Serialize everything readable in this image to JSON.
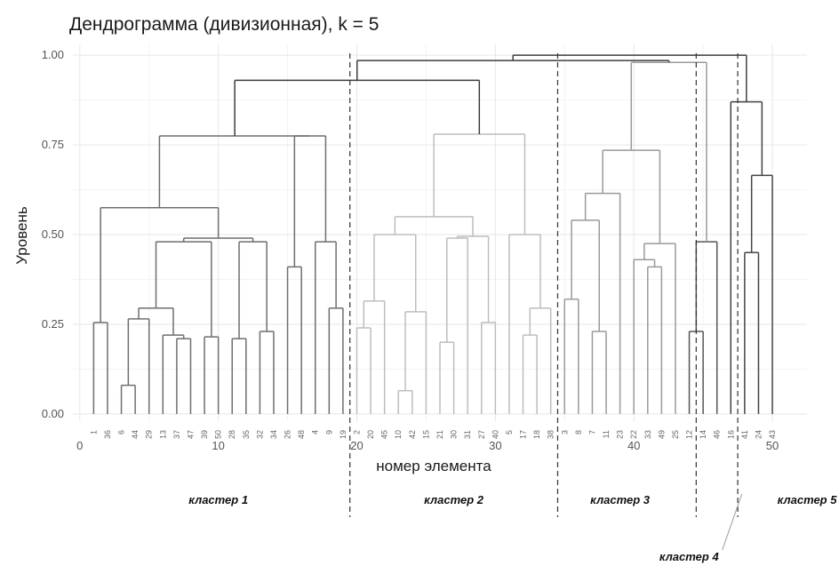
{
  "chart_data": {
    "type": "dendrogram",
    "title": "Дендрограмма (дивизионная), k = 5",
    "xlabel": "номер элемента",
    "ylabel": "Уровень",
    "xlim": [
      -0.5,
      52.5
    ],
    "ylim": [
      -0.02,
      1.03
    ],
    "x_ticks": [
      0,
      10,
      20,
      30,
      40,
      50
    ],
    "x_tick_labels": [
      "0",
      "10",
      "20",
      "30",
      "40",
      "50"
    ],
    "y_ticks": [
      0.0,
      0.25,
      0.5,
      0.75,
      1.0
    ],
    "y_tick_labels": [
      "0.00",
      "0.25",
      "0.50",
      "0.75",
      "1.00"
    ],
    "grid": true,
    "leaf_order": [
      "1",
      "36",
      "6",
      "44",
      "29",
      "13",
      "37",
      "47",
      "39",
      "50",
      "28",
      "35",
      "32",
      "34",
      "26",
      "48",
      "4",
      "9",
      "19",
      "2",
      "20",
      "45",
      "10",
      "42",
      "15",
      "21",
      "30",
      "31",
      "27",
      "40",
      "5",
      "17",
      "18",
      "38",
      "3",
      "8",
      "7",
      "11",
      "23",
      "22",
      "33",
      "49",
      "25",
      "12",
      "14",
      "46",
      "16",
      "41",
      "24",
      "43"
    ],
    "cluster_colors": [
      "#3d3d3d",
      "#6e6e6e",
      "#bdbdbd",
      "#9a9a9a",
      "#555555"
    ],
    "tree": {
      "h": 1.0,
      "cluster": 0,
      "children": [
        {
          "h": 0.985,
          "cluster": 0,
          "children": [
            {
              "h": 0.93,
              "cluster": 0,
              "children": [
                {
                  "h": 0.775,
                  "cluster": 1,
                  "children": [
                    {
                      "h": 0.575,
                      "cluster": 1,
                      "children": [
                        {
                          "h": 0.255,
                          "cluster": 1,
                          "children": [
                            {
                              "leaf": 1
                            },
                            {
                              "leaf": 2
                            }
                          ]
                        },
                        {
                          "h": 0.49,
                          "cluster": 1,
                          "children": [
                            {
                              "h": 0.48,
                              "cluster": 1,
                              "children": [
                                {
                                  "h": 0.295,
                                  "cluster": 1,
                                  "children": [
                                    {
                                      "h": 0.265,
                                      "cluster": 1,
                                      "children": [
                                        {
                                          "h": 0.08,
                                          "cluster": 1,
                                          "children": [
                                            {
                                              "leaf": 3
                                            },
                                            {
                                              "leaf": 4
                                            }
                                          ]
                                        },
                                        {
                                          "leaf": 5
                                        }
                                      ]
                                    },
                                    {
                                      "h": 0.22,
                                      "cluster": 1,
                                      "children": [
                                        {
                                          "leaf": 6
                                        },
                                        {
                                          "h": 0.21,
                                          "cluster": 1,
                                          "children": [
                                            {
                                              "leaf": 7
                                            },
                                            {
                                              "leaf": 8
                                            }
                                          ]
                                        }
                                      ]
                                    }
                                  ]
                                },
                                {
                                  "h": 0.215,
                                  "cluster": 1,
                                  "children": [
                                    {
                                      "leaf": 9
                                    },
                                    {
                                      "leaf": 10
                                    }
                                  ]
                                }
                              ]
                            },
                            {
                              "h": 0.48,
                              "cluster": 1,
                              "children": [
                                {
                                  "h": 0.21,
                                  "cluster": 1,
                                  "children": [
                                    {
                                      "leaf": 11
                                    },
                                    {
                                      "leaf": 12
                                    }
                                  ]
                                },
                                {
                                  "h": 0.23,
                                  "cluster": 1,
                                  "children": [
                                    {
                                      "leaf": 13
                                    },
                                    {
                                      "leaf": 14
                                    }
                                  ]
                                }
                              ]
                            }
                          ]
                        }
                      ]
                    },
                    {
                      "h": 0.775,
                      "cluster": 1,
                      "children": [
                        {
                          "h": 0.41,
                          "cluster": 1,
                          "children": [
                            {
                              "leaf": 15
                            },
                            {
                              "leaf": 16
                            }
                          ]
                        },
                        {
                          "h": 0.48,
                          "cluster": 1,
                          "children": [
                            {
                              "leaf": 17
                            },
                            {
                              "h": 0.295,
                              "cluster": 1,
                              "children": [
                                {
                                  "leaf": 18
                                },
                                {
                                  "leaf": 19
                                }
                              ]
                            }
                          ]
                        }
                      ]
                    }
                  ]
                },
                {
                  "h": 0.78,
                  "cluster": 2,
                  "children": [
                    {
                      "h": 0.55,
                      "cluster": 2,
                      "children": [
                        {
                          "h": 0.5,
                          "cluster": 2,
                          "children": [
                            {
                              "h": 0.315,
                              "cluster": 2,
                              "children": [
                                {
                                  "h": 0.24,
                                  "cluster": 2,
                                  "children": [
                                    {
                                      "leaf": 20
                                    },
                                    {
                                      "leaf": 21
                                    }
                                  ]
                                },
                                {
                                  "leaf": 22
                                }
                              ]
                            },
                            {
                              "h": 0.285,
                              "cluster": 2,
                              "children": [
                                {
                                  "h": 0.065,
                                  "cluster": 2,
                                  "children": [
                                    {
                                      "leaf": 23
                                    },
                                    {
                                      "leaf": 24
                                    }
                                  ]
                                },
                                {
                                  "leaf": 25
                                }
                              ]
                            }
                          ]
                        },
                        {
                          "h": 0.495,
                          "cluster": 2,
                          "children": [
                            {
                              "h": 0.49,
                              "cluster": 2,
                              "children": [
                                {
                                  "h": 0.2,
                                  "cluster": 2,
                                  "children": [
                                    {
                                      "leaf": 26
                                    },
                                    {
                                      "leaf": 27
                                    }
                                  ]
                                },
                                {
                                  "leaf": 28
                                }
                              ]
                            },
                            {
                              "h": 0.255,
                              "cluster": 2,
                              "children": [
                                {
                                  "leaf": 29
                                },
                                {
                                  "leaf": 30
                                }
                              ]
                            }
                          ]
                        }
                      ]
                    },
                    {
                      "h": 0.5,
                      "cluster": 2,
                      "children": [
                        {
                          "leaf": 31
                        },
                        {
                          "h": 0.295,
                          "cluster": 2,
                          "children": [
                            {
                              "h": 0.22,
                              "cluster": 2,
                              "children": [
                                {
                                  "leaf": 32
                                },
                                {
                                  "leaf": 33
                                }
                              ]
                            },
                            {
                              "leaf": 34
                            }
                          ]
                        }
                      ]
                    }
                  ]
                }
              ]
            },
            {
              "h": 0.98,
              "cluster": 3,
              "children": [
                {
                  "h": 0.735,
                  "cluster": 3,
                  "children": [
                    {
                      "h": 0.615,
                      "cluster": 3,
                      "children": [
                        {
                          "h": 0.54,
                          "cluster": 3,
                          "children": [
                            {
                              "h": 0.32,
                              "cluster": 3,
                              "children": [
                                {
                                  "leaf": 35
                                },
                                {
                                  "leaf": 36
                                }
                              ]
                            },
                            {
                              "h": 0.23,
                              "cluster": 3,
                              "children": [
                                {
                                  "leaf": 37
                                },
                                {
                                  "leaf": 38
                                }
                              ]
                            }
                          ]
                        },
                        {
                          "leaf": 39
                        }
                      ]
                    },
                    {
                      "h": 0.475,
                      "cluster": 3,
                      "children": [
                        {
                          "h": 0.43,
                          "cluster": 3,
                          "children": [
                            {
                              "leaf": 40
                            },
                            {
                              "h": 0.41,
                              "cluster": 3,
                              "children": [
                                {
                                  "leaf": 41
                                },
                                {
                                  "leaf": 42
                                }
                              ]
                            }
                          ]
                        },
                        {
                          "leaf": 43
                        }
                      ]
                    }
                  ]
                },
                {
                  "h": 0.48,
                  "cluster": 4,
                  "children": [
                    {
                      "h": 0.23,
                      "cluster": 4,
                      "children": [
                        {
                          "leaf": 44
                        },
                        {
                          "leaf": 45
                        }
                      ]
                    },
                    {
                      "leaf": 46
                    }
                  ]
                }
              ]
            }
          ]
        },
        {
          "h": 0.87,
          "cluster": 5,
          "children": [
            {
              "leaf": 47
            },
            {
              "h": 0.665,
              "cluster": 5,
              "children": [
                {
                  "h": 0.45,
                  "cluster": 5,
                  "children": [
                    {
                      "leaf": 48
                    },
                    {
                      "leaf": 49
                    }
                  ]
                },
                {
                  "h": 0.51,
                  "cluster": 5,
                  "children": [
                    {
                      "leaf": 50
                    }
                  ]
                }
              ]
            }
          ]
        }
      ]
    },
    "cluster_boundaries": [
      19.5,
      34.5,
      44.5,
      47.5
    ],
    "cluster_labels": [
      {
        "text": "кластер 1",
        "x": 10
      },
      {
        "text": "кластер 2",
        "x": 27
      },
      {
        "text": "кластер 3",
        "x": 39
      },
      {
        "text": "кластер 4",
        "x": 46
      },
      {
        "text": "кластер 5",
        "x": 51
      }
    ]
  }
}
